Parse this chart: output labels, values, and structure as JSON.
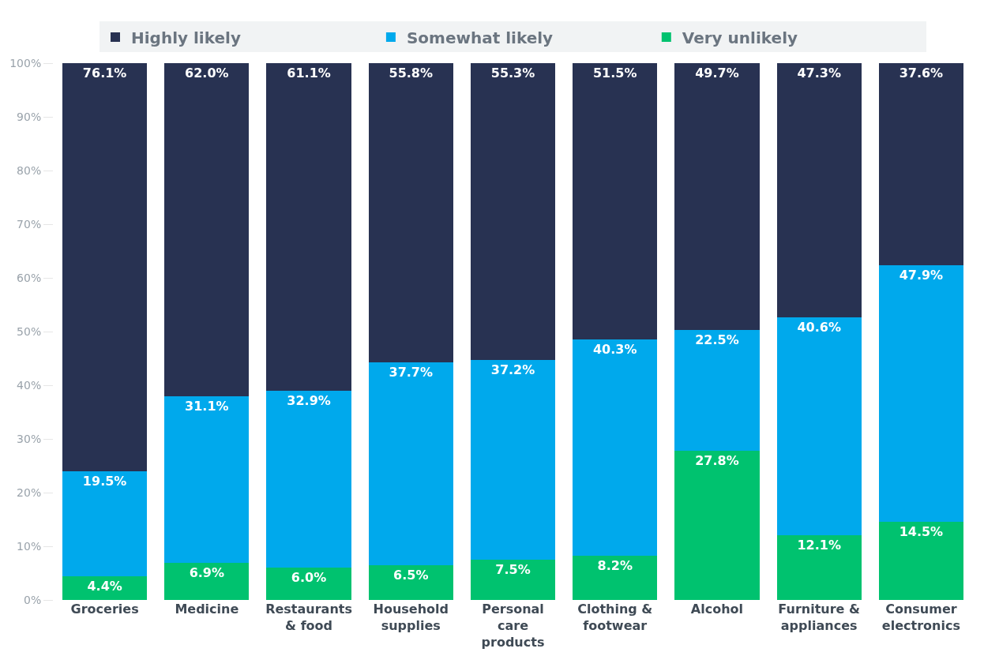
{
  "chart_data": {
    "type": "bar",
    "stacked": true,
    "categories": [
      "Groceries",
      "Medicine",
      "Restaurants & food",
      "Household supplies",
      "Personal care products",
      "Clothing & footwear",
      "Alcohol",
      "Furniture & appliances",
      "Consumer electronics"
    ],
    "series": [
      {
        "name": "Very unlikely",
        "color": "#00c26f",
        "values": [
          4.4,
          6.9,
          6.0,
          6.5,
          7.5,
          8.2,
          27.8,
          12.1,
          14.5
        ],
        "value_labels": [
          "4.4%",
          "6.9%",
          "6.0%",
          "6.5%",
          "7.5%",
          "8.2%",
          "27.8%",
          "12.1%",
          "14.5%"
        ]
      },
      {
        "name": "Somewhat likely",
        "color": "#00a9ec",
        "values": [
          19.5,
          31.1,
          32.9,
          37.7,
          37.2,
          40.3,
          22.5,
          40.6,
          47.9
        ],
        "value_labels": [
          "19.5%",
          "31.1%",
          "32.9%",
          "37.7%",
          "37.2%",
          "40.3%",
          "22.5%",
          "40.6%",
          "47.9%"
        ]
      },
      {
        "name": "Highly likely",
        "color": "#283252",
        "values": [
          76.1,
          62.0,
          61.1,
          55.8,
          55.3,
          51.5,
          49.7,
          47.3,
          37.6
        ],
        "value_labels": [
          "76.1%",
          "62.0%",
          "61.1%",
          "55.8%",
          "55.3%",
          "51.5%",
          "49.7%",
          "47.3%",
          "37.6%"
        ]
      }
    ],
    "ylim": [
      0,
      100
    ],
    "yticks": [
      {
        "value": 0,
        "label": "0%"
      },
      {
        "value": 10,
        "label": "10%"
      },
      {
        "value": 20,
        "label": "20%"
      },
      {
        "value": 30,
        "label": "30%"
      },
      {
        "value": 40,
        "label": "40%"
      },
      {
        "value": 50,
        "label": "50%"
      },
      {
        "value": 60,
        "label": "60%"
      },
      {
        "value": 70,
        "label": "70%"
      },
      {
        "value": 80,
        "label": "80%"
      },
      {
        "value": 90,
        "label": "90%"
      },
      {
        "value": 100,
        "label": "100%"
      }
    ],
    "grid": false,
    "legend": "top"
  }
}
